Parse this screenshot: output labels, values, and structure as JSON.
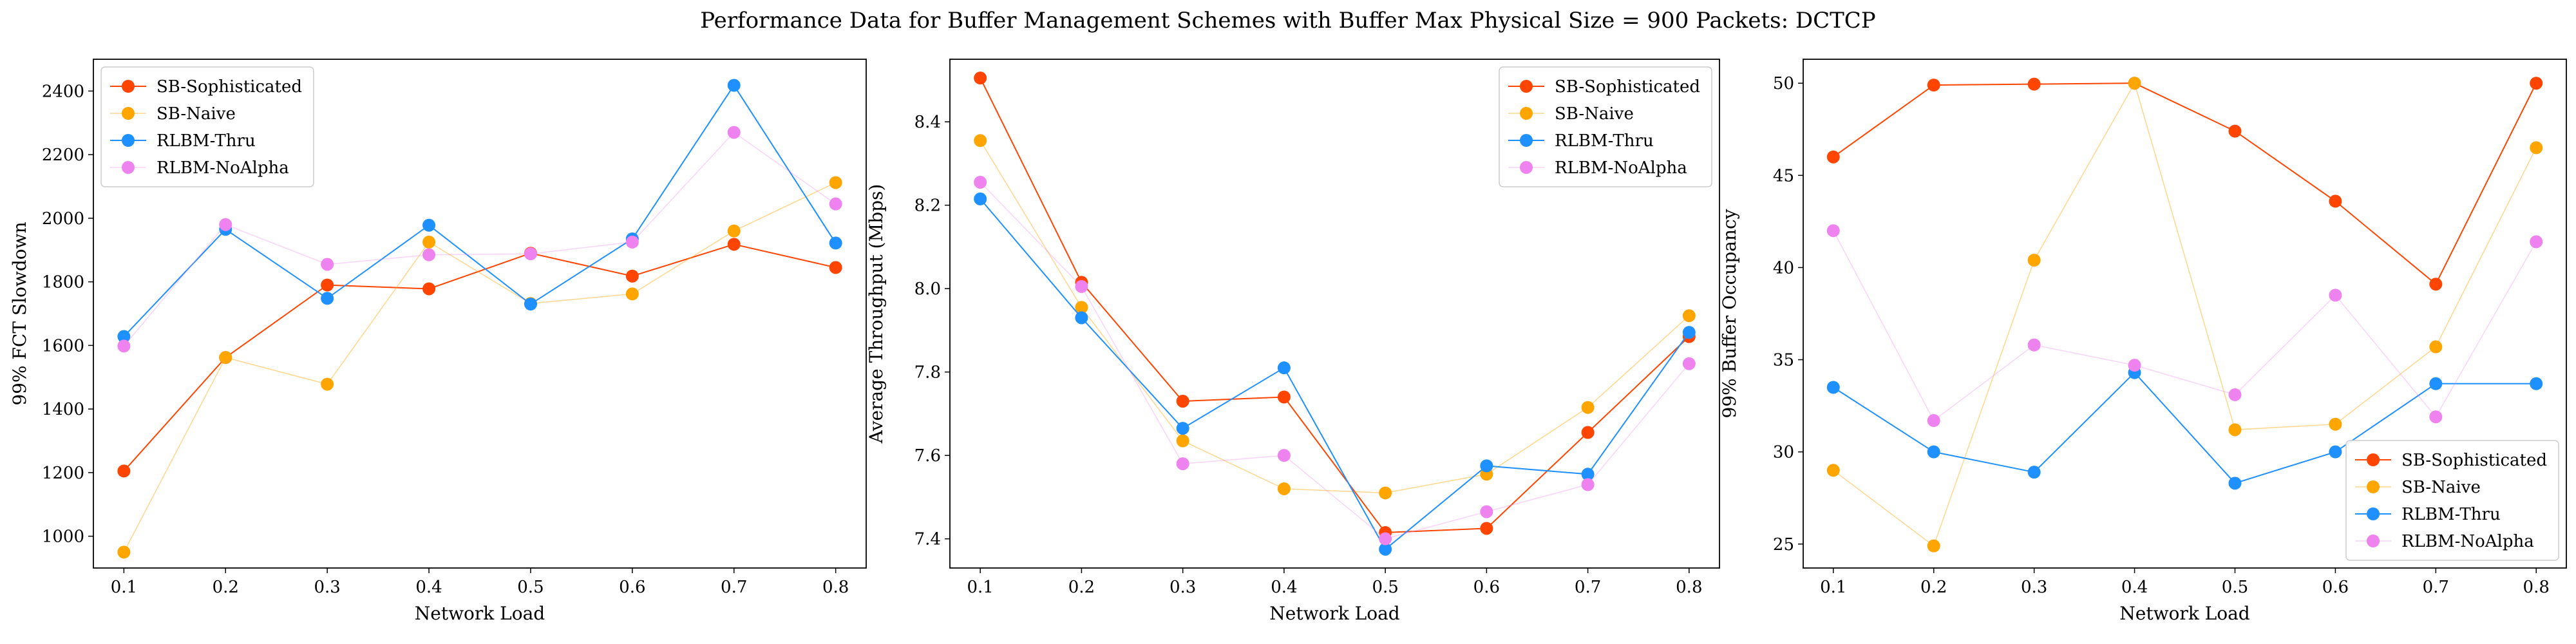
{
  "suptitle": "Performance Data for Buffer Management Schemes with Buffer Max Physical Size = 900 Packets: DCTCP",
  "colors": {
    "SB-Sophisticated": "#ff4500",
    "SB-Naive": "#ffa500",
    "RLBM-Thru": "#1e90ff",
    "RLBM-NoAlpha": "#ee82ee"
  },
  "chart_data": [
    {
      "type": "line",
      "xlabel": "Network Load",
      "ylabel": "99% FCT Slowdown",
      "x": [
        0.1,
        0.2,
        0.3,
        0.4,
        0.5,
        0.6,
        0.7,
        0.8
      ],
      "xticks": [
        "0.1",
        "0.2",
        "0.3",
        "0.4",
        "0.5",
        "0.6",
        "0.7",
        "0.8"
      ],
      "xlim": [
        0.07,
        0.83
      ],
      "ylim": [
        900,
        2500
      ],
      "yticks": [
        1000,
        1200,
        1400,
        1600,
        1800,
        2000,
        2200,
        2400
      ],
      "legend_position": "top-left",
      "series": [
        {
          "name": "SB-Sophisticated",
          "values": [
            1205,
            1562,
            1790,
            1778,
            1890,
            1818,
            1918,
            1845
          ]
        },
        {
          "name": "SB-Naive",
          "values": [
            950,
            1562,
            1478,
            1925,
            1732,
            1762,
            1960,
            2112
          ]
        },
        {
          "name": "RLBM-Thru",
          "values": [
            1628,
            1965,
            1748,
            1978,
            1730,
            1935,
            2418,
            1922
          ]
        },
        {
          "name": "RLBM-NoAlpha",
          "values": [
            1598,
            1980,
            1855,
            1885,
            1888,
            1925,
            2270,
            2045
          ]
        }
      ]
    },
    {
      "type": "line",
      "xlabel": "Network Load",
      "ylabel": "Average Throughput (Mbps)",
      "x": [
        0.1,
        0.2,
        0.3,
        0.4,
        0.5,
        0.6,
        0.7,
        0.8
      ],
      "xticks": [
        "0.1",
        "0.2",
        "0.3",
        "0.4",
        "0.5",
        "0.6",
        "0.7",
        "0.8"
      ],
      "xlim": [
        0.07,
        0.83
      ],
      "ylim": [
        7.33,
        8.55
      ],
      "yticks": [
        7.4,
        7.6,
        7.8,
        8.0,
        8.2,
        8.4
      ],
      "ytick_labels": [
        "7.4",
        "7.6",
        "7.8",
        "8.0",
        "8.2",
        "8.4"
      ],
      "legend_position": "top-right",
      "series": [
        {
          "name": "SB-Sophisticated",
          "values": [
            8.505,
            8.015,
            7.73,
            7.74,
            7.415,
            7.425,
            7.655,
            7.885
          ]
        },
        {
          "name": "SB-Naive",
          "values": [
            8.355,
            7.955,
            7.635,
            7.52,
            7.51,
            7.555,
            7.715,
            7.935
          ]
        },
        {
          "name": "RLBM-Thru",
          "values": [
            8.215,
            7.93,
            7.665,
            7.81,
            7.375,
            7.575,
            7.555,
            7.895
          ]
        },
        {
          "name": "RLBM-NoAlpha",
          "values": [
            8.255,
            8.005,
            7.58,
            7.6,
            7.4,
            7.465,
            7.53,
            7.82
          ]
        }
      ]
    },
    {
      "type": "line",
      "xlabel": "Network Load",
      "ylabel": "99% Buffer Occupancy",
      "x": [
        0.1,
        0.2,
        0.3,
        0.4,
        0.5,
        0.6,
        0.7,
        0.8
      ],
      "xticks": [
        "0.1",
        "0.2",
        "0.3",
        "0.4",
        "0.5",
        "0.6",
        "0.7",
        "0.8"
      ],
      "xlim": [
        0.07,
        0.83
      ],
      "ylim": [
        23.7,
        51.3
      ],
      "yticks": [
        25,
        30,
        35,
        40,
        45,
        50
      ],
      "legend_position": "bottom-right",
      "series": [
        {
          "name": "SB-Sophisticated",
          "values": [
            46.0,
            49.9,
            49.95,
            50.0,
            47.4,
            43.6,
            39.1,
            50.0
          ]
        },
        {
          "name": "SB-Naive",
          "values": [
            29.0,
            24.9,
            40.4,
            50.0,
            31.2,
            31.5,
            35.7,
            46.5
          ]
        },
        {
          "name": "RLBM-Thru",
          "values": [
            33.5,
            30.0,
            28.9,
            34.3,
            28.3,
            30.0,
            33.7,
            33.7
          ]
        },
        {
          "name": "RLBM-NoAlpha",
          "values": [
            42.0,
            31.7,
            35.8,
            34.7,
            33.1,
            38.5,
            31.9,
            41.4
          ]
        }
      ]
    }
  ]
}
